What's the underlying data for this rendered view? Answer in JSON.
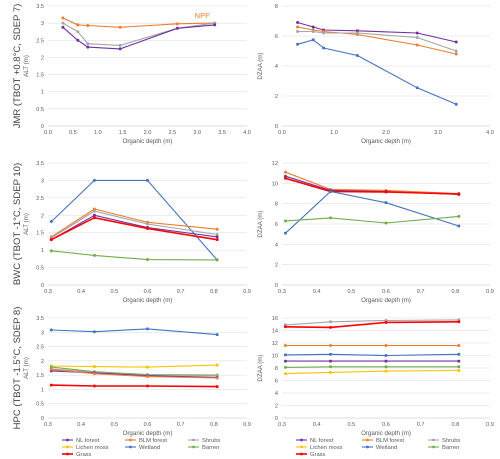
{
  "colors": {
    "NL forest": "#7030a0",
    "BLM forest": "#ed7d31",
    "Shrubs": "#a5a5a5",
    "Lichen moss": "#ffc000",
    "Wetland": "#4472c4",
    "Barren": "#70ad47",
    "Grass": "#ff0000"
  },
  "chart_data": [
    {
      "type": "line",
      "row": 0,
      "col": 0,
      "row_label": "JMR (TBOT +0.8°C, SDEP 7)",
      "xlabel": "Organic depth (m)",
      "ylabel": "ALT (m)",
      "xlim": [
        0,
        4
      ],
      "ylim": [
        0,
        3.5
      ],
      "xticks": [
        "0.0",
        "0.5",
        "1.0",
        "1.5",
        "2.0",
        "2.5",
        "3.0",
        "3.5",
        "4.0"
      ],
      "yticks": [
        "0",
        "0.5",
        "1",
        "1.5",
        "2",
        "2.5",
        "3",
        "3.5"
      ],
      "annotation": {
        "text": "NPF",
        "series": "BLM forest"
      },
      "series": [
        {
          "name": "BLM forest",
          "x": [
            0.3,
            0.6,
            0.8,
            1.45,
            2.6,
            3.35
          ],
          "y": [
            3.15,
            2.95,
            2.93,
            2.88,
            2.98,
            3.0
          ]
        },
        {
          "name": "Shrubs",
          "x": [
            0.3,
            0.6,
            0.8,
            1.45,
            2.6,
            3.35
          ],
          "y": [
            3.0,
            2.75,
            2.4,
            2.35,
            2.85,
            3.0
          ]
        },
        {
          "name": "NL forest",
          "x": [
            0.3,
            0.6,
            0.8,
            1.45,
            2.6,
            3.35
          ],
          "y": [
            2.88,
            2.5,
            2.3,
            2.25,
            2.85,
            2.95
          ]
        }
      ]
    },
    {
      "type": "line",
      "row": 0,
      "col": 1,
      "xlabel": "Organic depth (m)",
      "ylabel": "DZAA (m)",
      "xlim": [
        0,
        4
      ],
      "ylim": [
        0,
        8
      ],
      "xticks": [
        "0.0",
        "1.0",
        "2.0",
        "3.0",
        "4.0"
      ],
      "yticks": [
        "0",
        "2",
        "4",
        "6",
        "8"
      ],
      "series": [
        {
          "name": "NL forest",
          "x": [
            0.3,
            0.6,
            0.8,
            1.45,
            2.6,
            3.35
          ],
          "y": [
            6.9,
            6.6,
            6.4,
            6.35,
            6.2,
            5.6
          ]
        },
        {
          "name": "BLM forest",
          "x": [
            0.3,
            0.6,
            0.8,
            1.45,
            2.6,
            3.35
          ],
          "y": [
            6.6,
            6.4,
            6.3,
            6.1,
            5.4,
            4.8
          ]
        },
        {
          "name": "Shrubs",
          "x": [
            0.3,
            0.6,
            0.8,
            1.45,
            2.6,
            3.35
          ],
          "y": [
            6.3,
            6.3,
            6.2,
            6.2,
            5.9,
            5.0
          ]
        },
        {
          "name": "Wetland",
          "x": [
            0.3,
            0.6,
            0.8,
            1.45,
            2.6,
            3.35
          ],
          "y": [
            5.45,
            5.75,
            5.2,
            4.7,
            2.55,
            1.45
          ]
        }
      ]
    },
    {
      "type": "line",
      "row": 1,
      "col": 0,
      "row_label": "BWC (TBOT -1°C, SDEP 10)",
      "xlabel": "Organic depth (m)",
      "ylabel": "ALT (m)",
      "xlim": [
        0.3,
        0.9
      ],
      "ylim": [
        0,
        3.5
      ],
      "xticks": [
        "0.3",
        "0.4",
        "0.5",
        "0.6",
        "0.7",
        "0.8",
        "0.9"
      ],
      "yticks": [
        "0",
        "0.5",
        "1",
        "1.5",
        "2",
        "2.5",
        "3",
        "3.5"
      ],
      "series": [
        {
          "name": "Wetland",
          "x": [
            0.31,
            0.44,
            0.6,
            0.81
          ],
          "y": [
            1.82,
            3.0,
            3.0,
            0.72
          ]
        },
        {
          "name": "BLM forest",
          "x": [
            0.31,
            0.44,
            0.6,
            0.81
          ],
          "y": [
            1.38,
            2.18,
            1.8,
            1.6
          ]
        },
        {
          "name": "Shrubs",
          "x": [
            0.31,
            0.44,
            0.6,
            0.81
          ],
          "y": [
            1.35,
            2.12,
            1.75,
            1.45
          ]
        },
        {
          "name": "NL forest",
          "x": [
            0.31,
            0.44,
            0.6,
            0.81
          ],
          "y": [
            1.3,
            2.0,
            1.65,
            1.38
          ]
        },
        {
          "name": "Grass",
          "x": [
            0.31,
            0.44,
            0.6,
            0.81
          ],
          "y": [
            1.3,
            1.93,
            1.62,
            1.3
          ]
        },
        {
          "name": "Barren",
          "x": [
            0.31,
            0.44,
            0.6,
            0.81
          ],
          "y": [
            0.98,
            0.85,
            0.73,
            0.72
          ]
        }
      ]
    },
    {
      "type": "line",
      "row": 1,
      "col": 1,
      "xlabel": "Organic depth (m)",
      "ylabel": "DZAA (m)",
      "xlim": [
        0.3,
        0.9
      ],
      "ylim": [
        0,
        12
      ],
      "xticks": [
        "0.3",
        "0.4",
        "0.5",
        "0.6",
        "0.7",
        "0.8",
        "0.9"
      ],
      "yticks": [
        "0",
        "2",
        "4",
        "6",
        "8",
        "10",
        "12"
      ],
      "series": [
        {
          "name": "BLM forest",
          "x": [
            0.31,
            0.44,
            0.6,
            0.81
          ],
          "y": [
            11.1,
            9.4,
            9.3,
            9.0
          ]
        },
        {
          "name": "NL forest",
          "x": [
            0.31,
            0.44,
            0.6,
            0.81
          ],
          "y": [
            10.7,
            9.3,
            9.2,
            8.9
          ]
        },
        {
          "name": "Grass",
          "x": [
            0.31,
            0.44,
            0.6,
            0.81
          ],
          "y": [
            10.5,
            9.2,
            9.15,
            8.95
          ]
        },
        {
          "name": "Wetland",
          "x": [
            0.31,
            0.44,
            0.6,
            0.81
          ],
          "y": [
            5.1,
            9.2,
            8.1,
            5.8
          ]
        },
        {
          "name": "Barren",
          "x": [
            0.31,
            0.44,
            0.6,
            0.81
          ],
          "y": [
            6.3,
            6.6,
            6.1,
            6.75
          ]
        }
      ]
    },
    {
      "type": "line",
      "row": 2,
      "col": 0,
      "row_label": "HPC (TBOT -1.5°C, SDEP 8)",
      "xlabel": "Organic depth (m)",
      "ylabel": "ALT (m)",
      "xlim": [
        0.3,
        0.9
      ],
      "ylim": [
        0,
        3.5
      ],
      "xticks": [
        "0.3",
        "0.4",
        "0.5",
        "0.6",
        "0.7",
        "0.8",
        "0.9"
      ],
      "yticks": [
        "0",
        "0.5",
        "1",
        "1.5",
        "2",
        "2.5",
        "3",
        "3.5"
      ],
      "series": [
        {
          "name": "Wetland",
          "x": [
            0.31,
            0.44,
            0.6,
            0.81
          ],
          "y": [
            3.08,
            3.02,
            3.12,
            2.92
          ]
        },
        {
          "name": "Lichen moss",
          "x": [
            0.31,
            0.44,
            0.6,
            0.81
          ],
          "y": [
            1.82,
            1.8,
            1.78,
            1.85
          ]
        },
        {
          "name": "Barren",
          "x": [
            0.31,
            0.44,
            0.6,
            0.81
          ],
          "y": [
            1.78,
            1.62,
            1.52,
            1.5
          ]
        },
        {
          "name": "Shrubs",
          "x": [
            0.31,
            0.44,
            0.6,
            0.81
          ],
          "y": [
            1.72,
            1.6,
            1.5,
            1.48
          ]
        },
        {
          "name": "NL forest",
          "x": [
            0.31,
            0.44,
            0.6,
            0.81
          ],
          "y": [
            1.65,
            1.58,
            1.48,
            1.42
          ]
        },
        {
          "name": "BLM forest",
          "x": [
            0.31,
            0.44,
            0.6,
            0.81
          ],
          "y": [
            1.7,
            1.55,
            1.45,
            1.4
          ]
        },
        {
          "name": "Grass",
          "x": [
            0.31,
            0.44,
            0.6,
            0.81
          ],
          "y": [
            1.15,
            1.12,
            1.12,
            1.1
          ]
        }
      ]
    },
    {
      "type": "line",
      "row": 2,
      "col": 1,
      "xlabel": "Organic depth (m)",
      "ylabel": "DZAA (m)",
      "xlim": [
        0.3,
        0.9
      ],
      "ylim": [
        0,
        16
      ],
      "xticks": [
        "0.3",
        "0.4",
        "0.5",
        "0.6",
        "0.7",
        "0.8",
        "0.9"
      ],
      "yticks": [
        "0",
        "2",
        "4",
        "6",
        "8",
        "10",
        "12",
        "14",
        "16"
      ],
      "series": [
        {
          "name": "Shrubs",
          "x": [
            0.31,
            0.44,
            0.6,
            0.81
          ],
          "y": [
            14.9,
            15.4,
            15.6,
            15.7
          ]
        },
        {
          "name": "Grass",
          "x": [
            0.31,
            0.44,
            0.6,
            0.81
          ],
          "y": [
            14.6,
            14.5,
            15.3,
            15.4
          ]
        },
        {
          "name": "BLM forest",
          "x": [
            0.31,
            0.44,
            0.6,
            0.81
          ],
          "y": [
            11.6,
            11.6,
            11.6,
            11.6
          ]
        },
        {
          "name": "Wetland",
          "x": [
            0.31,
            0.44,
            0.6,
            0.81
          ],
          "y": [
            10.1,
            10.2,
            10.0,
            10.2
          ]
        },
        {
          "name": "NL forest",
          "x": [
            0.31,
            0.44,
            0.6,
            0.81
          ],
          "y": [
            9.1,
            9.1,
            9.1,
            9.1
          ]
        },
        {
          "name": "Barren",
          "x": [
            0.31,
            0.44,
            0.6,
            0.81
          ],
          "y": [
            8.1,
            8.2,
            8.2,
            8.2
          ]
        },
        {
          "name": "Lichen moss",
          "x": [
            0.31,
            0.44,
            0.6,
            0.81
          ],
          "y": [
            7.1,
            7.3,
            7.5,
            7.6
          ]
        }
      ]
    }
  ],
  "legend_left": [
    "NL forest",
    "BLM forest",
    "Shrubs",
    "Lichen moss",
    "Wetland",
    "Barren",
    "Grass"
  ],
  "legend_right": [
    "NL forest",
    "BLM forest",
    "Shrubs",
    "Lichen moss",
    "Wetland",
    "Barren",
    "Grass"
  ]
}
